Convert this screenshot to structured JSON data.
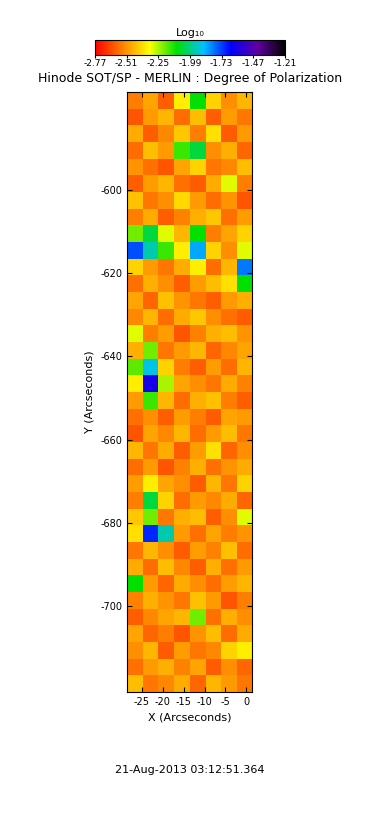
{
  "chart_data": {
    "type": "heatmap",
    "title": "Hinode SOT/SP - MERLIN : Degree of Polarization",
    "xlabel": "X (Arcseconds)",
    "ylabel": "Y (Arcseconds)",
    "annotations": [
      "21-Aug-2013 03:12:51.364"
    ],
    "xlim": [
      -28.6,
      1.4
    ],
    "xticks": [
      -25,
      -20,
      -15,
      -10,
      -5,
      0
    ],
    "ylim": [
      -720.7,
      -576.4
    ],
    "yticks": [
      -700,
      -680,
      -660,
      -640,
      -620,
      -600
    ],
    "colorbar": {
      "label": "Log₁₀",
      "range": [
        -2.77,
        -1.21
      ],
      "ticks": [
        -2.77,
        -2.51,
        -2.25,
        -1.99,
        -1.73,
        -1.47,
        -1.21
      ]
    },
    "cells": [
      [
        -2.55,
        -2.48,
        -2.6,
        -2.35,
        -2.1,
        -2.4,
        -2.52,
        -2.45
      ],
      [
        -2.62,
        -2.5,
        -2.45,
        -2.58,
        -2.44,
        -2.6,
        -2.49,
        -2.56
      ],
      [
        -2.47,
        -2.6,
        -2.53,
        -2.42,
        -2.55,
        -2.38,
        -2.61,
        -2.5
      ],
      [
        -2.58,
        -2.44,
        -2.5,
        -2.15,
        -2.05,
        -2.52,
        -2.46,
        -2.59
      ],
      [
        -2.51,
        -2.57,
        -2.62,
        -2.48,
        -2.4,
        -2.56,
        -2.53,
        -2.44
      ],
      [
        -2.6,
        -2.49,
        -2.45,
        -2.57,
        -2.61,
        -2.47,
        -2.3,
        -2.55
      ],
      [
        -2.43,
        -2.56,
        -2.52,
        -2.39,
        -2.5,
        -2.58,
        -2.51,
        -2.62
      ],
      [
        -2.55,
        -2.47,
        -2.6,
        -2.54,
        -2.46,
        -2.42,
        -2.57,
        -2.49
      ],
      [
        -2.2,
        -2.05,
        -2.3,
        -2.45,
        -2.1,
        -2.55,
        -2.48,
        -2.4
      ],
      [
        -1.75,
        -1.95,
        -2.15,
        -2.35,
        -1.85,
        -2.4,
        -2.52,
        -2.3
      ],
      [
        -2.4,
        -2.5,
        -2.56,
        -2.47,
        -2.35,
        -2.58,
        -2.45,
        -1.8
      ],
      [
        -2.57,
        -2.46,
        -2.52,
        -2.6,
        -2.49,
        -2.44,
        -2.38,
        -2.1
      ],
      [
        -2.48,
        -2.59,
        -2.43,
        -2.51,
        -2.56,
        -2.6,
        -2.5,
        -2.46
      ],
      [
        -2.53,
        -2.45,
        -2.58,
        -2.47,
        -2.42,
        -2.52,
        -2.57,
        -2.61
      ],
      [
        -2.3,
        -2.55,
        -2.49,
        -2.62,
        -2.54,
        -2.46,
        -2.44,
        -2.51
      ],
      [
        -2.46,
        -2.2,
        -2.56,
        -2.5,
        -2.45,
        -2.59,
        -2.53,
        -2.48
      ],
      [
        -2.18,
        -1.9,
        -2.4,
        -2.55,
        -2.6,
        -2.49,
        -2.58,
        -2.45
      ],
      [
        -2.35,
        -1.6,
        -2.25,
        -2.48,
        -2.52,
        -2.56,
        -2.47,
        -2.54
      ],
      [
        -2.5,
        -2.15,
        -2.45,
        -2.58,
        -2.46,
        -2.43,
        -2.55,
        -2.6
      ],
      [
        -2.57,
        -2.52,
        -2.6,
        -2.49,
        -2.55,
        -2.61,
        -2.48,
        -2.5
      ],
      [
        -2.62,
        -2.48,
        -2.53,
        -2.45,
        -2.58,
        -2.5,
        -2.44,
        -2.56
      ],
      [
        -2.45,
        -2.56,
        -2.47,
        -2.6,
        -2.49,
        -2.38,
        -2.59,
        -2.52
      ],
      [
        -2.58,
        -2.5,
        -2.62,
        -2.54,
        -2.46,
        -2.57,
        -2.51,
        -2.47
      ],
      [
        -2.49,
        -2.35,
        -2.48,
        -2.52,
        -2.61,
        -2.45,
        -2.56,
        -2.4
      ],
      [
        -2.55,
        -2.05,
        -2.4,
        -2.58,
        -2.5,
        -2.53,
        -2.47,
        -2.59
      ],
      [
        -2.42,
        -2.2,
        -2.56,
        -2.46,
        -2.44,
        -2.6,
        -2.52,
        -2.3
      ],
      [
        -2.38,
        -1.7,
        -1.95,
        -2.5,
        -2.57,
        -2.48,
        -2.55,
        -2.51
      ],
      [
        -2.56,
        -2.45,
        -2.52,
        -2.61,
        -2.49,
        -2.54,
        -2.43,
        -2.58
      ],
      [
        -2.47,
        -2.58,
        -2.44,
        -2.53,
        -2.6,
        -2.46,
        -2.57,
        -2.5
      ],
      [
        -2.1,
        -2.5,
        -2.59,
        -2.47,
        -2.52,
        -2.58,
        -2.49,
        -2.45
      ],
      [
        -2.54,
        -2.46,
        -2.51,
        -2.56,
        -2.43,
        -2.5,
        -2.62,
        -2.55
      ],
      [
        -2.6,
        -2.53,
        -2.48,
        -2.45,
        -2.2,
        -2.57,
        -2.46,
        -2.52
      ],
      [
        -2.48,
        -2.59,
        -2.55,
        -2.62,
        -2.51,
        -2.44,
        -2.58,
        -2.47
      ],
      [
        -2.52,
        -2.45,
        -2.61,
        -2.49,
        -2.56,
        -2.53,
        -2.4,
        -2.35
      ],
      [
        -2.57,
        -2.5,
        -2.46,
        -2.54,
        -2.48,
        -2.61,
        -2.52,
        -2.59
      ],
      [
        -2.44,
        -2.56,
        -2.53,
        -2.47,
        -2.59,
        -2.45,
        -2.5,
        -2.56
      ]
    ]
  }
}
